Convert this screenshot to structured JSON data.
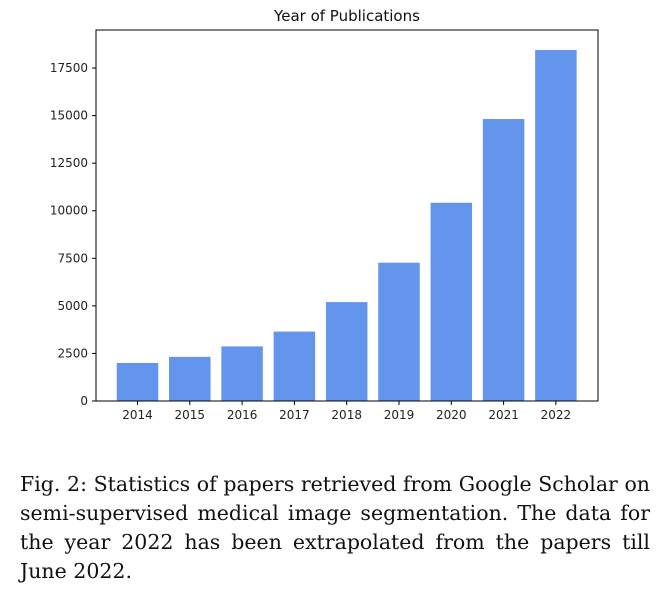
{
  "chart_data": {
    "type": "bar",
    "title": "Year of Publications",
    "xlabel": "",
    "ylabel": "",
    "categories": [
      "2014",
      "2015",
      "2016",
      "2017",
      "2018",
      "2019",
      "2020",
      "2021",
      "2022"
    ],
    "values": [
      2000,
      2320,
      2870,
      3650,
      5200,
      7270,
      10420,
      14820,
      18450
    ],
    "ylim": [
      0,
      19500
    ],
    "yticks": [
      0,
      2500,
      5000,
      7500,
      10000,
      12500,
      15000,
      17500
    ],
    "ytick_labels": [
      "0",
      "2500",
      "5000",
      "7500",
      "10000",
      "12500",
      "15000",
      "17500"
    ],
    "bar_color": "#6495ED",
    "grid": false,
    "legend": false
  },
  "caption": {
    "text": "Fig. 2: Statistics of papers retrieved from Google Scholar on semi-supervised medical image segmentation. The data for the year 2022 has been extrapolated from the papers till June 2022."
  }
}
